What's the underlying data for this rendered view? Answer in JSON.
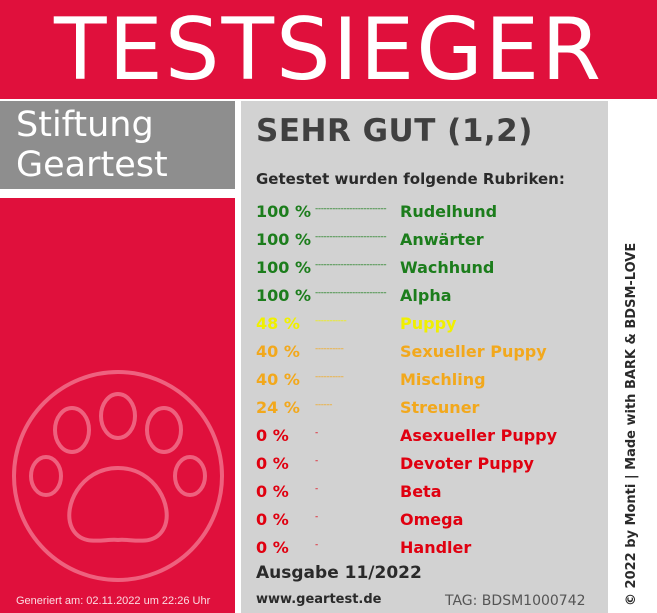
{
  "banner": {
    "title": "TESTSIEGER"
  },
  "brand": {
    "line1": "Stiftung",
    "line2": "Geartest"
  },
  "result": {
    "grade": "SEHR GUT (1,2)",
    "subtitle": "Getestet wurden folgende Rubriken:",
    "rows": [
      {
        "pct": "100 %",
        "dash": "-------------------------",
        "label": "Rudelhund",
        "color": "#1c7d1c"
      },
      {
        "pct": "100 %",
        "dash": "-------------------------",
        "label": "Anwärter",
        "color": "#1c7d1c"
      },
      {
        "pct": "100 %",
        "dash": "-------------------------",
        "label": "Wachhund",
        "color": "#1c7d1c"
      },
      {
        "pct": "100 %",
        "dash": "-------------------------",
        "label": "Alpha",
        "color": "#1c7d1c"
      },
      {
        "pct": "48 %",
        "dash": "-----------",
        "label": "Puppy",
        "color": "#f0f000"
      },
      {
        "pct": "40 %",
        "dash": "----------",
        "label": "Sexueller Puppy",
        "color": "#f2a81c"
      },
      {
        "pct": "40 %",
        "dash": "----------",
        "label": "Mischling",
        "color": "#f2a81c"
      },
      {
        "pct": "24 %",
        "dash": "------",
        "label": "Streuner",
        "color": "#f2a81c"
      },
      {
        "pct": "0 %",
        "dash": "-",
        "label": "Asexueller Puppy",
        "color": "#e00010"
      },
      {
        "pct": "0 %",
        "dash": "-",
        "label": "Devoter Puppy",
        "color": "#e00010"
      },
      {
        "pct": "0 %",
        "dash": "-",
        "label": "Beta",
        "color": "#e00010"
      },
      {
        "pct": "0 %",
        "dash": "-",
        "label": "Omega",
        "color": "#e00010"
      },
      {
        "pct": "0 %",
        "dash": "-",
        "label": "Handler",
        "color": "#e00010"
      }
    ]
  },
  "footer": {
    "issue": "Ausgabe 11/2022",
    "website": "www.geartest.de",
    "tag": "TAG: BDSM1000742",
    "generated": "Generiert am: 02.11.2022 um 22:26 Uhr",
    "credit": "© 2022 by Monti | Made with BARK & BDSM-LOVE"
  },
  "colors": {
    "brand_red": "#e0103c",
    "brand_gray": "#8e8e8e",
    "panel_gray": "#d2d2d2"
  },
  "icons": {
    "logo": "paw-icon"
  }
}
